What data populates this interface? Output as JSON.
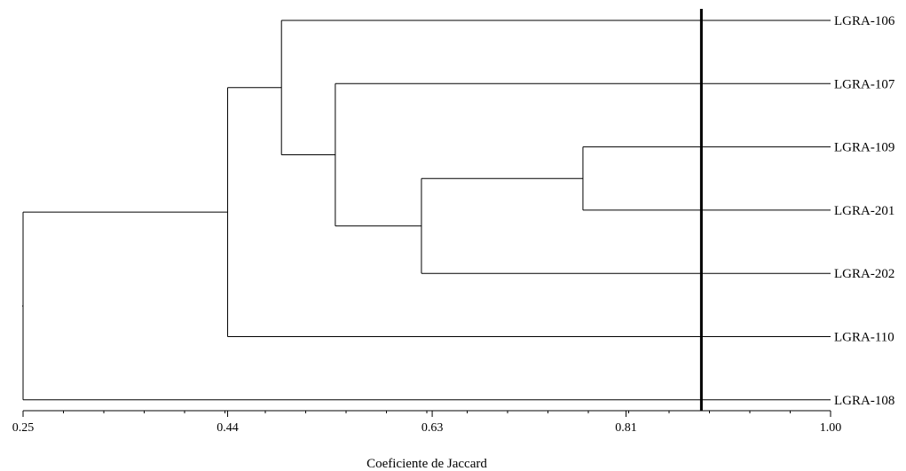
{
  "chart_data": {
    "type": "dendrogram",
    "title": "",
    "xlabel": "Coeficiente de Jaccard",
    "xlim": [
      0.25,
      1.0
    ],
    "major_ticks": [
      0.25,
      0.44,
      0.63,
      0.81,
      1.0
    ],
    "tick_labels": [
      "0.25",
      "0.44",
      "0.63",
      "0.81",
      "1.00"
    ],
    "leaves": [
      "LGRA-106",
      "LGRA-107",
      "LGRA-109",
      "LGRA-201",
      "LGRA-202",
      "LGRA-110",
      "LGRA-108"
    ],
    "merges": [
      {
        "items": [
          "LGRA-109",
          "LGRA-201"
        ],
        "similarity": 0.77
      },
      {
        "items": [
          "LGRA-109+LGRA-201",
          "LGRA-202"
        ],
        "similarity": 0.62
      },
      {
        "items": [
          "LGRA-107",
          "LGRA-109+LGRA-201+LGRA-202"
        ],
        "similarity": 0.54
      },
      {
        "items": [
          "LGRA-106",
          "LGRA-107+LGRA-109+LGRA-201+LGRA-202"
        ],
        "similarity": 0.49
      },
      {
        "items": [
          "LGRA-106+LGRA-107+LGRA-109+LGRA-201+LGRA-202",
          "LGRA-110"
        ],
        "similarity": 0.44
      },
      {
        "items": [
          "LGRA-106+LGRA-107+LGRA-109+LGRA-201+LGRA-202+LGRA-110",
          "LGRA-108"
        ],
        "similarity": 0.25
      }
    ],
    "cutoff_line": 0.88,
    "colors": {
      "lines": "#000000",
      "background": "#ffffff"
    }
  }
}
